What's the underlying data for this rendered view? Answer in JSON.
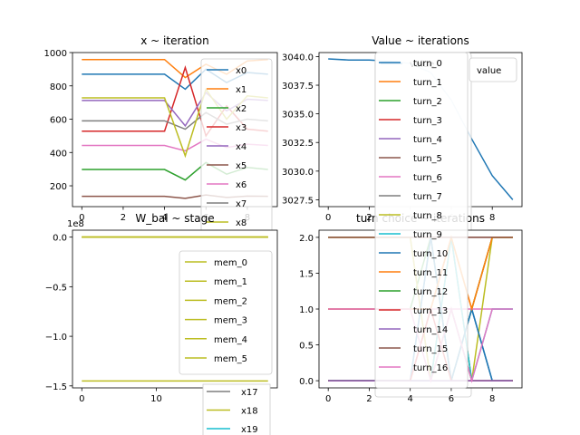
{
  "figure": {
    "background": "#ffffff"
  },
  "chart_data": [
    {
      "type": "line",
      "title": "x ~ iteration",
      "xlabel": "",
      "ylabel": "",
      "xlim": [
        -0.45,
        9.45
      ],
      "ylim": [
        75,
        1000
      ],
      "xticks": [
        "0",
        "2",
        "4",
        "6",
        "8"
      ],
      "yticks": [
        "200",
        "400",
        "600",
        "800",
        "1000"
      ],
      "xtick_values": [
        0,
        2,
        4,
        6,
        8
      ],
      "ytick_values": [
        200,
        400,
        600,
        800,
        1000
      ],
      "x": [
        0,
        1,
        2,
        3,
        4,
        5,
        6,
        7,
        8,
        9
      ],
      "legend": {
        "placement": "top-right"
      },
      "series": [
        {
          "name": "x0",
          "color": "#1f77b4",
          "values": [
            870,
            870,
            870,
            870,
            870,
            780,
            900,
            820,
            880,
            870
          ]
        },
        {
          "name": "x1",
          "color": "#ff7f0e",
          "values": [
            958,
            958,
            958,
            958,
            958,
            850,
            930,
            870,
            950,
            958
          ]
        },
        {
          "name": "x2",
          "color": "#2ca02c",
          "values": [
            298,
            298,
            298,
            298,
            298,
            235,
            340,
            270,
            310,
            298
          ]
        },
        {
          "name": "x3",
          "color": "#d62728",
          "values": [
            528,
            528,
            528,
            528,
            528,
            910,
            500,
            680,
            540,
            528
          ]
        },
        {
          "name": "x4",
          "color": "#9467bd",
          "values": [
            712,
            712,
            712,
            712,
            712,
            560,
            760,
            650,
            720,
            712
          ]
        },
        {
          "name": "x5",
          "color": "#8c564b",
          "values": [
            137,
            137,
            137,
            137,
            137,
            125,
            145,
            130,
            138,
            137
          ]
        },
        {
          "name": "x6",
          "color": "#e377c2",
          "values": [
            442,
            442,
            442,
            442,
            442,
            410,
            480,
            430,
            450,
            442
          ]
        },
        {
          "name": "x7",
          "color": "#7f7f7f",
          "values": [
            590,
            590,
            590,
            590,
            590,
            540,
            640,
            570,
            600,
            590
          ]
        },
        {
          "name": "x8",
          "color": "#bcbd22",
          "values": [
            728,
            728,
            728,
            728,
            728,
            380,
            780,
            600,
            740,
            728
          ]
        }
      ]
    },
    {
      "type": "line",
      "title": "Value ~ iterations",
      "xlabel": "",
      "ylabel": "",
      "xlim": [
        -0.45,
        9.45
      ],
      "ylim": [
        3026.9,
        3040.35
      ],
      "xticks": [
        "0",
        "2",
        "4",
        "6",
        "8"
      ],
      "yticks": [
        "3027.5",
        "3030.0",
        "3032.5",
        "3035.0",
        "3037.5",
        "3040.0"
      ],
      "xtick_values": [
        0,
        2,
        4,
        6,
        8
      ],
      "ytick_values": [
        3027.5,
        3030.0,
        3032.5,
        3035.0,
        3037.5,
        3040.0
      ],
      "x": [
        0,
        1,
        2,
        3,
        4,
        5,
        6,
        7,
        8,
        9
      ],
      "legend": {
        "placement": "top-right"
      },
      "series": [
        {
          "name": "value",
          "color": "#1f77b4",
          "values": [
            3039.8,
            3039.7,
            3039.7,
            3039.6,
            3039.4,
            3038.6,
            3036.2,
            3032.8,
            3029.6,
            3027.5
          ]
        }
      ]
    },
    {
      "type": "line",
      "title": "W_bal ~ stage",
      "offset_text": "1e8",
      "xlabel": "",
      "ylabel": "",
      "xlim": [
        -1.25,
        26.25
      ],
      "ylim": [
        -1.52,
        0.07
      ],
      "xticks": [
        "0",
        "10",
        "20"
      ],
      "yticks": [
        "−1.5",
        "−1.0",
        "−0.5",
        "0.0"
      ],
      "xtick_values": [
        0,
        10,
        20
      ],
      "ytick_values": [
        -1.5,
        -1.0,
        -0.5,
        0.0
      ],
      "x": [
        0,
        25
      ],
      "legend": {
        "placement": "upper right"
      },
      "series": [
        {
          "name": "mem_0",
          "color": "#bcbd22",
          "values": [
            0,
            0
          ]
        },
        {
          "name": "mem_1",
          "color": "#bcbd22",
          "values": [
            0,
            0
          ]
        },
        {
          "name": "mem_2",
          "color": "#bcbd22",
          "values": [
            0,
            0
          ]
        },
        {
          "name": "mem_3",
          "color": "#bcbd22",
          "values": [
            0,
            0
          ]
        },
        {
          "name": "mem_4",
          "color": "#bcbd22",
          "values": [
            0,
            0
          ]
        },
        {
          "name": "mem_5",
          "color": "#bcbd22",
          "values": [
            -1.45,
            -1.45
          ]
        }
      ]
    },
    {
      "type": "line",
      "title": "turn choice ~ iterations",
      "xlabel": "",
      "ylabel": "",
      "xlim": [
        -0.45,
        9.45
      ],
      "ylim": [
        -0.1,
        2.1
      ],
      "xticks": [
        "0",
        "2",
        "4",
        "6",
        "8"
      ],
      "yticks": [
        "0.0",
        "0.5",
        "1.0",
        "1.5",
        "2.0"
      ],
      "xtick_values": [
        0,
        2,
        4,
        6,
        8
      ],
      "ytick_values": [
        0.0,
        0.5,
        1.0,
        1.5,
        2.0
      ],
      "x": [
        0,
        1,
        2,
        3,
        4,
        5,
        6,
        7,
        8,
        9
      ],
      "legend": {
        "placement": "left"
      },
      "series": [
        {
          "name": "turn_0",
          "color": "#1f77b4",
          "values": [
            0,
            0,
            0,
            0,
            0,
            2,
            0,
            1,
            0,
            0
          ]
        },
        {
          "name": "turn_1",
          "color": "#ff7f0e",
          "values": [
            2,
            2,
            2,
            2,
            2,
            0,
            2,
            1,
            2,
            2
          ]
        },
        {
          "name": "turn_2",
          "color": "#2ca02c",
          "values": [
            1,
            1,
            1,
            1,
            1,
            2,
            0,
            1,
            2,
            2
          ]
        },
        {
          "name": "turn_3",
          "color": "#d62728",
          "values": [
            0,
            0,
            0,
            0,
            0,
            1,
            2,
            0,
            0,
            0
          ]
        },
        {
          "name": "turn_4",
          "color": "#9467bd",
          "values": [
            0,
            0,
            0,
            0,
            0,
            0,
            0,
            0,
            0,
            0
          ]
        },
        {
          "name": "turn_5",
          "color": "#8c564b",
          "values": [
            2,
            2,
            2,
            2,
            2,
            2,
            2,
            2,
            2,
            2
          ]
        },
        {
          "name": "turn_6",
          "color": "#e377c2",
          "values": [
            1,
            1,
            1,
            1,
            1,
            1,
            1,
            1,
            1,
            1
          ]
        },
        {
          "name": "turn_7",
          "color": "#7f7f7f",
          "values": [
            0,
            0,
            0,
            0,
            0,
            0,
            0,
            0,
            0,
            0
          ]
        },
        {
          "name": "turn_8",
          "color": "#bcbd22",
          "values": [
            2,
            2,
            2,
            2,
            2,
            0,
            2,
            0,
            2,
            2
          ]
        },
        {
          "name": "turn_9",
          "color": "#17becf",
          "values": [
            0,
            0,
            0,
            0,
            0,
            0,
            2,
            0,
            1,
            1
          ]
        },
        {
          "name": "turn_10",
          "color": "#1f77b4",
          "values": [
            0,
            0,
            0,
            0,
            0,
            2,
            0,
            1,
            0,
            0
          ]
        },
        {
          "name": "turn_11",
          "color": "#ff7f0e",
          "values": [
            1,
            1,
            1,
            1,
            1,
            1,
            2,
            1,
            2,
            2
          ]
        },
        {
          "name": "turn_12",
          "color": "#2ca02c",
          "values": [
            0,
            0,
            0,
            0,
            0,
            0,
            1,
            0,
            0,
            0
          ]
        },
        {
          "name": "turn_13",
          "color": "#d62728",
          "values": [
            0,
            0,
            0,
            0,
            0,
            1,
            0,
            0,
            0,
            0
          ]
        },
        {
          "name": "turn_14",
          "color": "#9467bd",
          "values": [
            0,
            0,
            0,
            0,
            0,
            0,
            0,
            0,
            0,
            0
          ]
        },
        {
          "name": "turn_15",
          "color": "#8c564b",
          "values": [
            2,
            2,
            2,
            2,
            2,
            2,
            2,
            2,
            2,
            2
          ]
        },
        {
          "name": "turn_16",
          "color": "#e377c2",
          "values": [
            1,
            1,
            1,
            1,
            1,
            0,
            1,
            0,
            1,
            1
          ]
        }
      ]
    }
  ],
  "overflow_legend": {
    "entries": [
      {
        "name": "x17",
        "color": "#7f7f7f"
      },
      {
        "name": "x18",
        "color": "#bcbd22"
      },
      {
        "name": "x19",
        "color": "#17becf"
      }
    ]
  }
}
